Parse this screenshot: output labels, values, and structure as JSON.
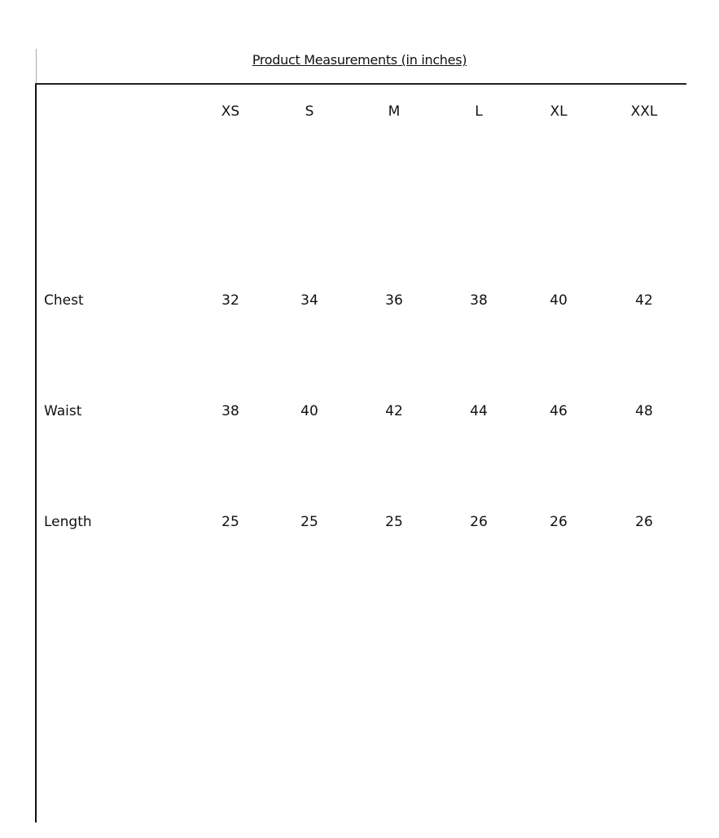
{
  "title": "Product Measurements  (in inches)",
  "sizes": [
    "XS",
    "S",
    "M",
    "L",
    "XL",
    "XXL"
  ],
  "rows": [
    {
      "label": "Chest",
      "values": [
        "32",
        "34",
        "36",
        "38",
        "40",
        "42"
      ]
    },
    {
      "label": "Waist",
      "values": [
        "38",
        "40",
        "42",
        "44",
        "46",
        "48"
      ]
    },
    {
      "label": "Length",
      "values": [
        "25",
        "25",
        "25",
        "26",
        "26",
        "26"
      ]
    }
  ]
}
